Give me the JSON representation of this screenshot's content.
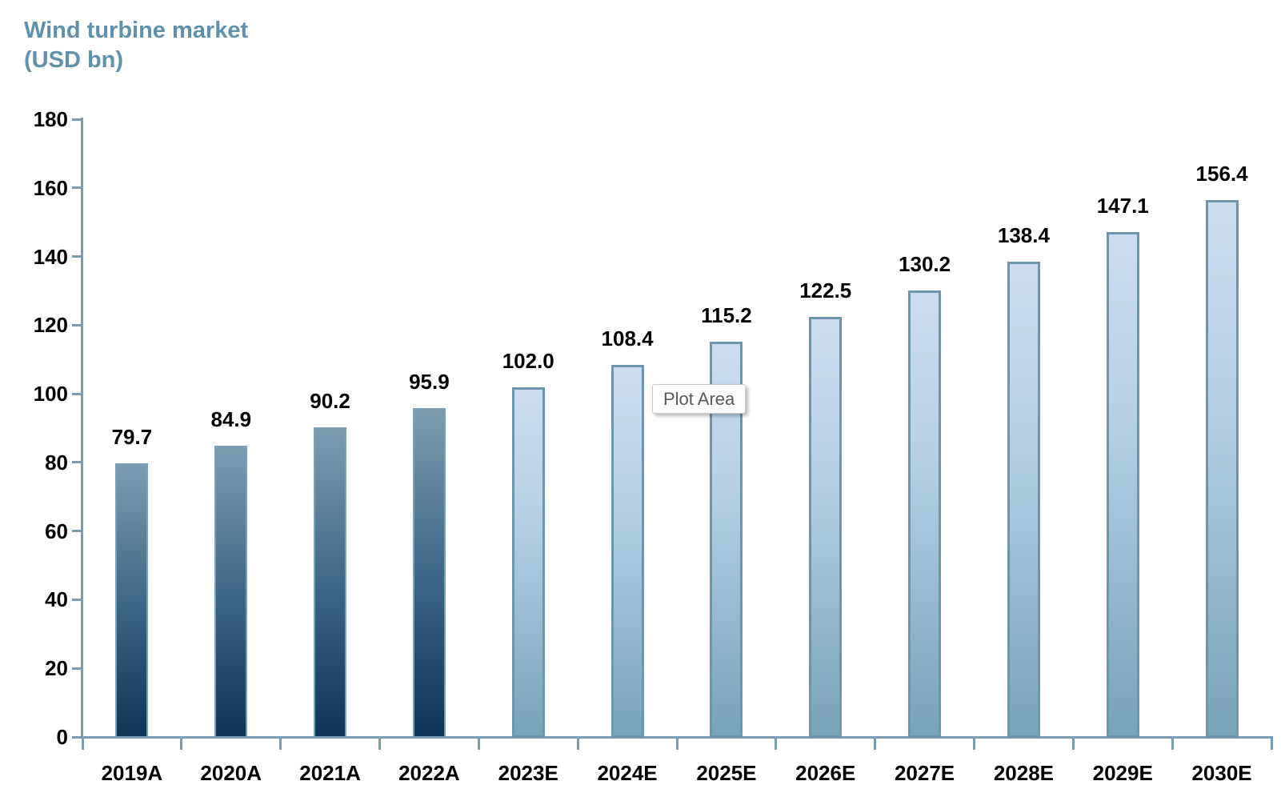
{
  "title": {
    "line1": "Wind turbine market",
    "line2": "(USD bn)",
    "color": "#6090ac"
  },
  "tooltip": {
    "label": "Plot Area"
  },
  "chart_data": {
    "type": "bar",
    "title": "Wind turbine market (USD bn)",
    "xlabel": "",
    "ylabel": "USD bn",
    "categories": [
      "2019A",
      "2020A",
      "2021A",
      "2022A",
      "2023E",
      "2024E",
      "2025E",
      "2026E",
      "2027E",
      "2028E",
      "2029E",
      "2030E"
    ],
    "values": [
      79.7,
      84.9,
      90.2,
      95.9,
      102.0,
      108.4,
      115.2,
      122.5,
      130.2,
      138.4,
      147.1,
      156.4
    ],
    "data_labels": [
      "79.7",
      "84.9",
      "90.2",
      "95.9",
      "102.0",
      "108.4",
      "115.2",
      "122.5",
      "130.2",
      "138.4",
      "147.1",
      "156.4"
    ],
    "actual_categories_count": 4,
    "ylim": [
      0,
      180
    ],
    "yticks": [
      0,
      20,
      40,
      60,
      80,
      100,
      120,
      140,
      160,
      180
    ],
    "grid": false,
    "legend": false,
    "colors": {
      "axis": "#7a9cb3",
      "tick_label": "#000000",
      "data_label": "#000000",
      "actual_bar_top": "#7d9cb0",
      "actual_bar_mid": "#3f6787",
      "actual_bar_bottom": "#0e3456",
      "actual_bar_border": "#7ba0b5",
      "estimate_bar_top": "#cdddf1",
      "estimate_bar_mid": "#b4cee3",
      "estimate_bar_bottom": "#78a3b9",
      "estimate_bar_border": "#6d96ac"
    }
  }
}
